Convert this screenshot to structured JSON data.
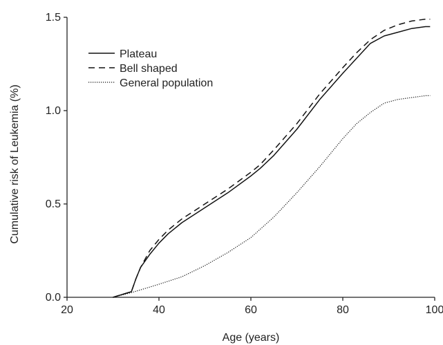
{
  "chart_data": {
    "type": "line",
    "title": "",
    "xlabel": "Age (years)",
    "ylabel": "Cumulative risk of Leukemia (%)",
    "xlim": [
      20,
      100
    ],
    "ylim": [
      0.0,
      1.5
    ],
    "xticks": [
      "20",
      "40",
      "60",
      "80",
      "100"
    ],
    "yticks": [
      "0.0",
      "0.5",
      "1.0",
      "1.5"
    ],
    "grid": false,
    "legend_position": "top-left",
    "series": [
      {
        "name": "Plateau",
        "line_style": "solid",
        "color": "#111111",
        "x": [
          30,
          34,
          35,
          36,
          38,
          40,
          42,
          45,
          50,
          55,
          60,
          62,
          65,
          70,
          75,
          80,
          83,
          86,
          89,
          92,
          95,
          98,
          99
        ],
        "y": [
          0.0,
          0.03,
          0.1,
          0.16,
          0.23,
          0.29,
          0.34,
          0.4,
          0.48,
          0.56,
          0.65,
          0.69,
          0.76,
          0.9,
          1.06,
          1.2,
          1.28,
          1.36,
          1.4,
          1.42,
          1.44,
          1.45,
          1.45
        ]
      },
      {
        "name": "Bell shaped",
        "line_style": "dashed",
        "color": "#111111",
        "x": [
          30,
          34,
          35,
          36,
          38,
          40,
          42,
          45,
          50,
          55,
          60,
          62,
          65,
          70,
          75,
          80,
          83,
          86,
          89,
          92,
          95,
          98,
          99
        ],
        "y": [
          0.0,
          0.03,
          0.1,
          0.16,
          0.25,
          0.31,
          0.36,
          0.42,
          0.5,
          0.58,
          0.67,
          0.71,
          0.79,
          0.93,
          1.09,
          1.23,
          1.31,
          1.38,
          1.43,
          1.46,
          1.48,
          1.49,
          1.49
        ]
      },
      {
        "name": "General population",
        "line_style": "dotted",
        "color": "#111111",
        "x": [
          30,
          34,
          36,
          40,
          45,
          50,
          55,
          60,
          65,
          70,
          75,
          80,
          83,
          86,
          89,
          92,
          95,
          98,
          99
        ],
        "y": [
          0.0,
          0.025,
          0.04,
          0.07,
          0.11,
          0.17,
          0.24,
          0.32,
          0.43,
          0.56,
          0.7,
          0.85,
          0.93,
          0.99,
          1.04,
          1.06,
          1.07,
          1.08,
          1.08
        ]
      }
    ]
  }
}
